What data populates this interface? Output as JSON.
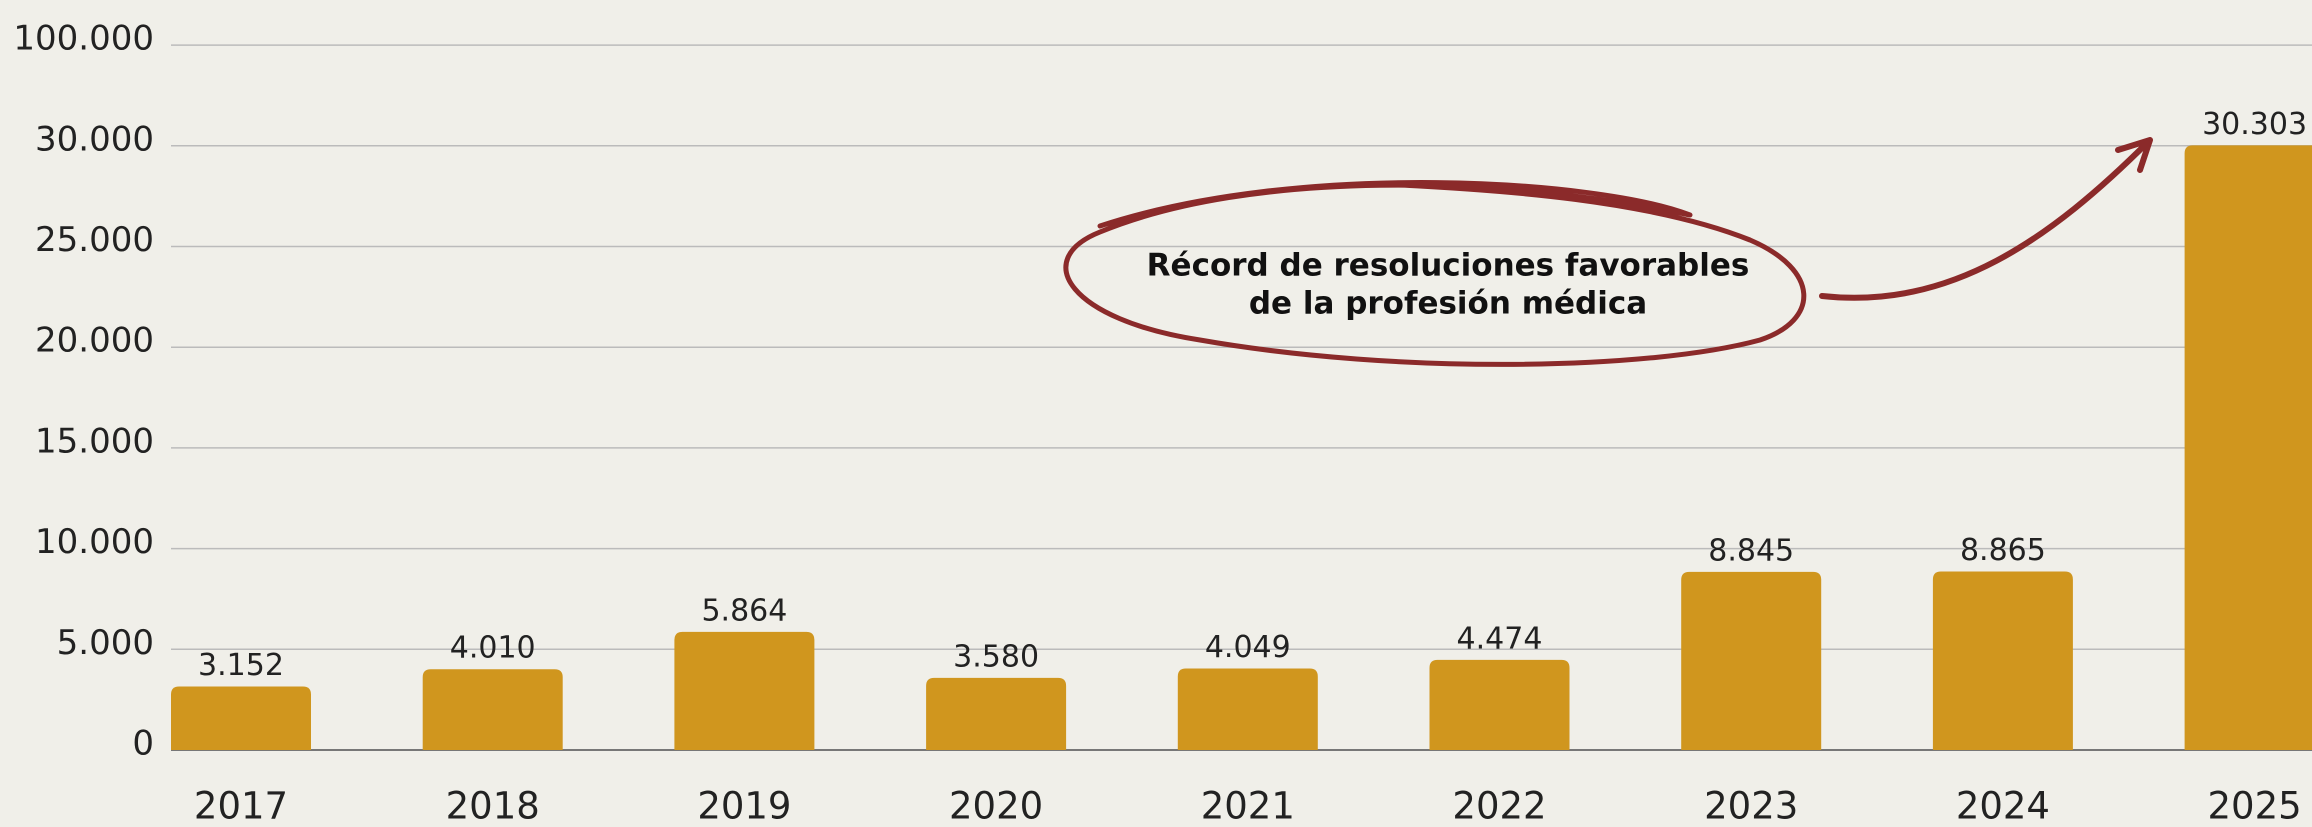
{
  "chart_data": {
    "type": "bar",
    "categories": [
      "2017",
      "2018",
      "2019",
      "2020",
      "2021",
      "2022",
      "2023",
      "2024",
      "2025"
    ],
    "values": [
      3152,
      4010,
      5864,
      3580,
      4049,
      4474,
      8845,
      8865,
      30303
    ],
    "value_labels": [
      "3.152",
      "4.010",
      "5.864",
      "3.580",
      "4.049",
      "4.474",
      "8.845",
      "8.865",
      "30.303"
    ],
    "color": "#d0961e",
    "ylim": [
      0,
      100000
    ],
    "yticks": [
      0,
      {
        "value": 5000,
        "label": "5.000"
      },
      {
        "value": 10000,
        "label": "10.000"
      },
      {
        "value": 15000,
        "label": "15.000"
      },
      {
        "value": 20000,
        "label": "20.000"
      },
      {
        "value": 25000,
        "label": "25.000"
      },
      {
        "value": 30000,
        "label": "30.000"
      },
      {
        "value": 100000,
        "label": "100.000"
      }
    ],
    "grid": true,
    "annotation": [
      "Récord de resoluciones favorables",
      "de la profesión médica"
    ]
  }
}
